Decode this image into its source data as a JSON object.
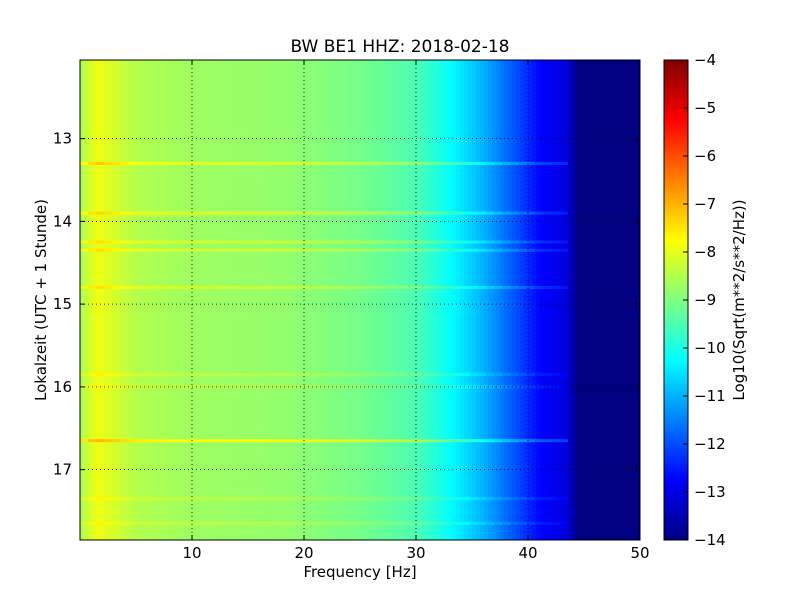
{
  "chart_data": {
    "type": "heatmap",
    "title": "BW BE1 HHZ: 2018-02-18",
    "xlabel": "Frequency [Hz]",
    "ylabel": "Lokalzeit (UTC + 1 Stunde)",
    "xlim": [
      0,
      50
    ],
    "ylim": [
      12.05,
      17.85
    ],
    "y_axis_inverted": true,
    "xticks": [
      10,
      20,
      30,
      40,
      50
    ],
    "yticks": [
      13,
      14,
      15,
      16,
      17
    ],
    "grid": true,
    "colorbar": {
      "label": "Log10(Sqrt(m**2/s**2/Hz))",
      "range": [
        -14,
        -4
      ],
      "ticks": [
        -4,
        -5,
        -6,
        -7,
        -8,
        -9,
        -10,
        -11,
        -12,
        -13,
        -14
      ],
      "colormap": "jet"
    },
    "spectral_profile": [
      {
        "frequency": 0,
        "value": -8.6
      },
      {
        "frequency": 1.5,
        "value": -7.9
      },
      {
        "frequency": 5,
        "value": -8.5
      },
      {
        "frequency": 10,
        "value": -8.7
      },
      {
        "frequency": 18,
        "value": -8.8
      },
      {
        "frequency": 25,
        "value": -9.1
      },
      {
        "frequency": 30,
        "value": -9.5
      },
      {
        "frequency": 33,
        "value": -10.2
      },
      {
        "frequency": 36,
        "value": -11.0
      },
      {
        "frequency": 39,
        "value": -12.0
      },
      {
        "frequency": 41,
        "value": -12.7
      },
      {
        "frequency": 43.5,
        "value": -13.1
      },
      {
        "frequency": 44.5,
        "value": -14
      },
      {
        "frequency": 50,
        "value": -14
      }
    ],
    "event_lines": [
      {
        "time": 13.3,
        "delta": 0.7
      },
      {
        "time": 13.9,
        "delta": 0.6
      },
      {
        "time": 14.25,
        "delta": 0.5
      },
      {
        "time": 14.35,
        "delta": 0.5
      },
      {
        "time": 14.8,
        "delta": 0.5
      },
      {
        "time": 15.85,
        "delta": 0.3
      },
      {
        "time": 16.0,
        "delta": 0.3
      },
      {
        "time": 16.65,
        "delta": 0.9
      },
      {
        "time": 17.35,
        "delta": 0.3
      },
      {
        "time": 17.65,
        "delta": 0.3
      }
    ]
  }
}
